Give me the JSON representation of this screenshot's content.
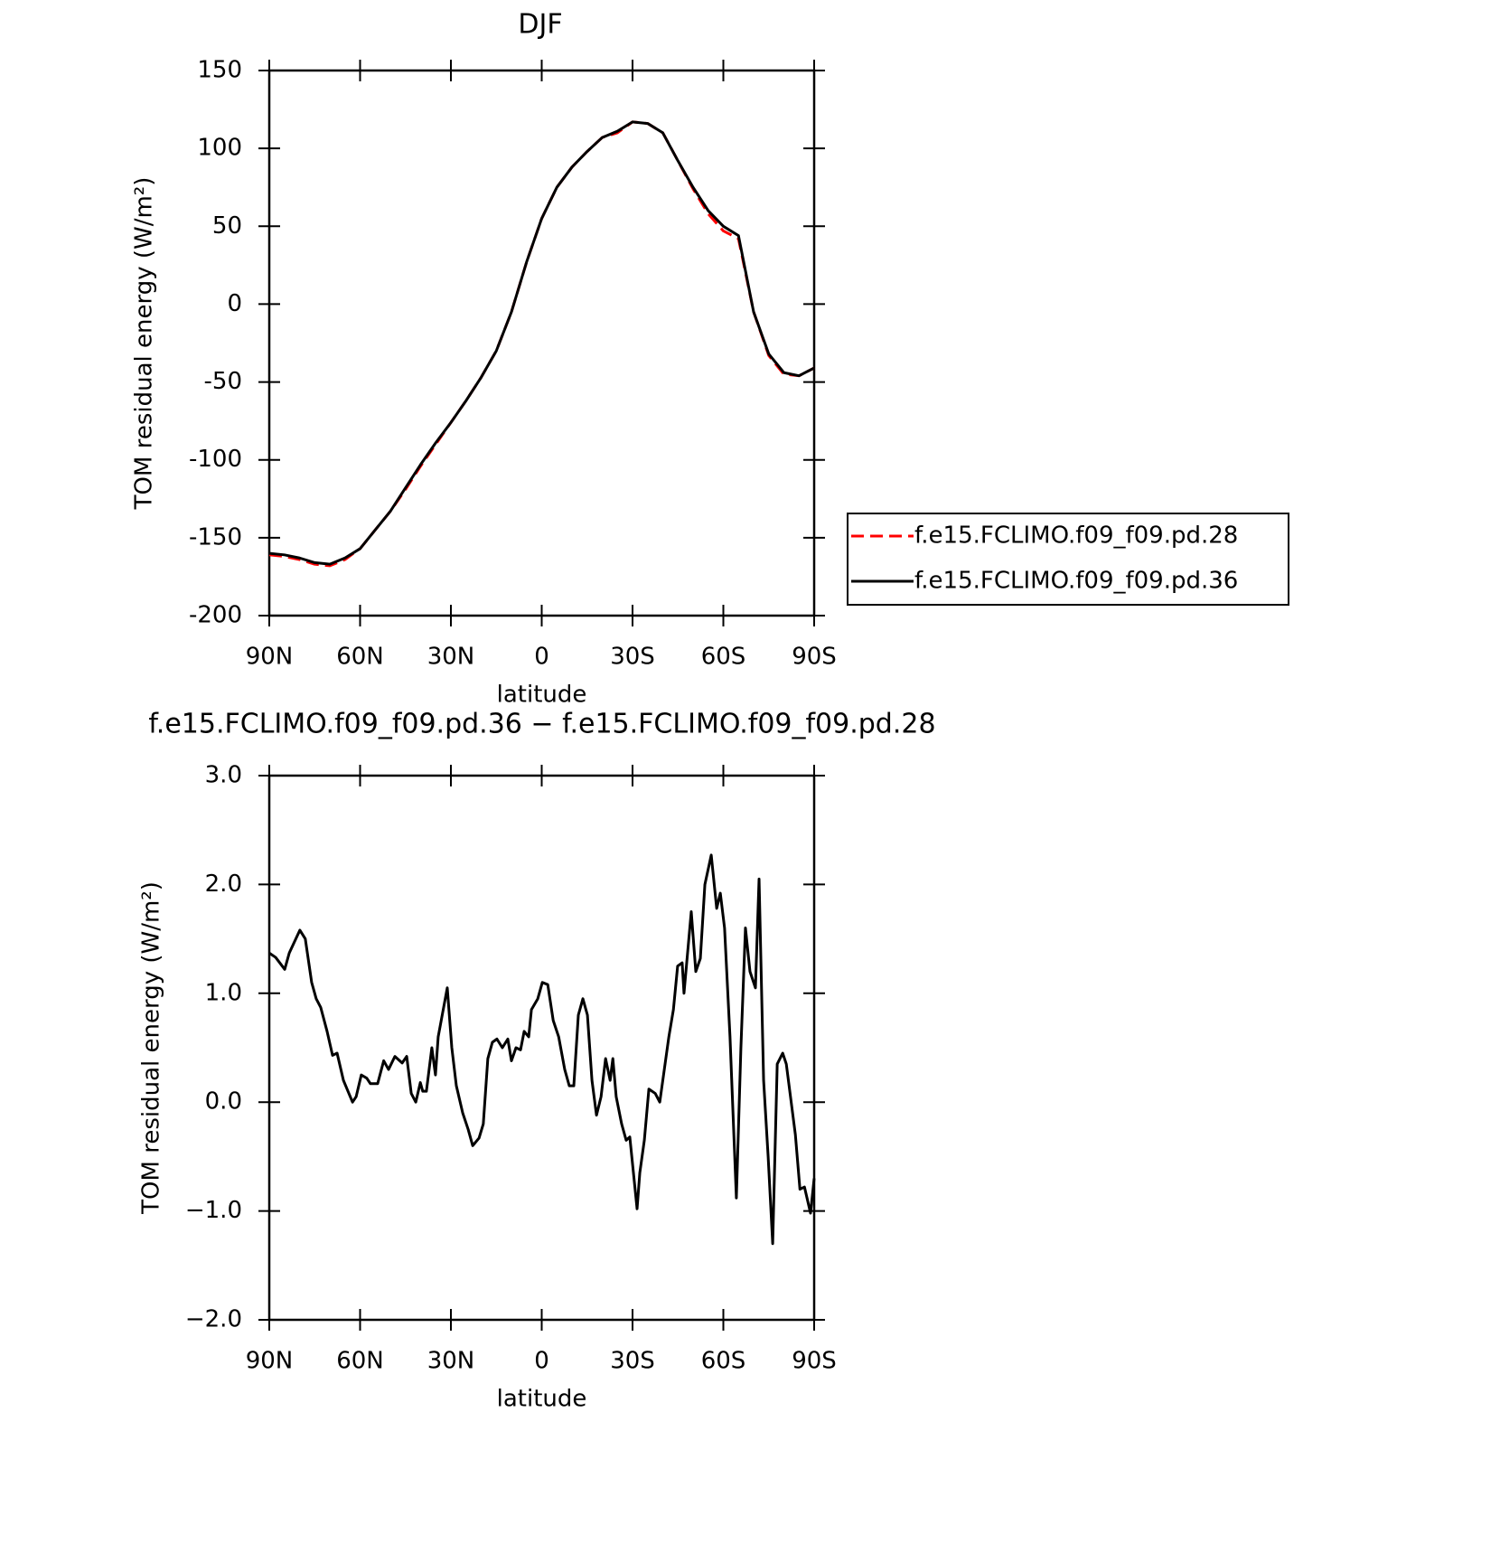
{
  "chart_data": [
    {
      "type": "line",
      "title": "DJF",
      "ylabel": "TOM residual energy (W/m²)",
      "xlabel": "latitude",
      "xlim": [
        90,
        -90
      ],
      "xticks": [
        {
          "value": 90,
          "label": "90N"
        },
        {
          "value": 60,
          "label": "60N"
        },
        {
          "value": 30,
          "label": "30N"
        },
        0,
        {
          "value": -30,
          "label": "30S"
        },
        {
          "value": -60,
          "label": "60S"
        },
        {
          "value": -90,
          "label": "90S"
        }
      ],
      "ylim": [
        -200,
        150
      ],
      "yticks": [
        -200,
        -150,
        -100,
        -50,
        0,
        50,
        100,
        150
      ],
      "legend": "right",
      "x": [
        90,
        85,
        80,
        75,
        70,
        65,
        60,
        55,
        50,
        45,
        40,
        35,
        30,
        25,
        20,
        15,
        10,
        5,
        0,
        -5,
        -10,
        -15,
        -20,
        -25,
        -30,
        -35,
        -40,
        -45,
        -50,
        -55,
        -60,
        -65,
        -70,
        -75,
        -80,
        -85,
        -90
      ],
      "series": [
        {
          "name": "f.e15.FCLIMO.f09_f09.pd.28",
          "color": "#ff0000",
          "dash": true,
          "values": [
            -161,
            -162,
            -164,
            -167,
            -168,
            -164,
            -157,
            -145,
            -133,
            -119,
            -104,
            -90,
            -76,
            -62,
            -47,
            -30,
            -5,
            27,
            55,
            75,
            88,
            98,
            107,
            110,
            117,
            116,
            110,
            92,
            74,
            58,
            47,
            42,
            -5,
            -33,
            -45,
            -46,
            -41
          ]
        },
        {
          "name": "f.e15.FCLIMO.f09_f09.pd.36",
          "color": "#000000",
          "dash": false,
          "values": [
            -160,
            -161,
            -163,
            -166,
            -167,
            -163,
            -157,
            -145,
            -133,
            -118,
            -103,
            -89,
            -76,
            -62,
            -47,
            -30,
            -5,
            27,
            55,
            75,
            88,
            98,
            107,
            111,
            117,
            116,
            110,
            92,
            75,
            60,
            50,
            44,
            -5,
            -32,
            -44,
            -46,
            -41
          ]
        }
      ]
    },
    {
      "type": "line",
      "title": "f.e15.FCLIMO.f09_f09.pd.36 − f.e15.FCLIMO.f09_f09.pd.28",
      "ylabel": "TOM residual energy (W/m²)",
      "xlabel": "latitude",
      "xlim": [
        90,
        -90
      ],
      "xticks": [
        {
          "value": 90,
          "label": "90N"
        },
        {
          "value": 60,
          "label": "60N"
        },
        {
          "value": 30,
          "label": "30N"
        },
        0,
        {
          "value": -30,
          "label": "30S"
        },
        {
          "value": -60,
          "label": "60S"
        },
        {
          "value": -90,
          "label": "90S"
        }
      ],
      "ylim": [
        -2,
        3
      ],
      "yticks": [
        {
          "value": -2,
          "label": "−2.0"
        },
        {
          "value": -1,
          "label": "−1.0"
        },
        {
          "value": 0,
          "label": "0.0"
        },
        {
          "value": 1,
          "label": "1.0"
        },
        {
          "value": 2,
          "label": "2.0"
        },
        {
          "value": 3,
          "label": "3.0"
        }
      ],
      "x": [
        90,
        87.9,
        84.9,
        83.4,
        79.9,
        78.1,
        76.0,
        74.5,
        73.0,
        70.9,
        69.1,
        67.6,
        65.5,
        64.0,
        62.5,
        61.3,
        59.6,
        57.8,
        56.6,
        54.2,
        52.2,
        50.6,
        48.5,
        46.1,
        44.6,
        43.1,
        41.6,
        40.1,
        39.3,
        38.1,
        36.3,
        35.1,
        34.2,
        31.2,
        29.7,
        28.2,
        26.1,
        24.3,
        22.8,
        20.7,
        19.3,
        17.8,
        16.3,
        14.8,
        13.0,
        11.2,
        10.0,
        8.5,
        7.0,
        5.8,
        4.3,
        3.4,
        1.3,
        -0.2,
        -2.0,
        -3.8,
        -5.6,
        -7.6,
        -9.1,
        -10.6,
        -12.1,
        -13.6,
        -15.1,
        -16.6,
        -18.1,
        -19.6,
        -21.1,
        -22.6,
        -23.5,
        -24.6,
        -26.4,
        -27.9,
        -29.1,
        -31.5,
        -32.4,
        -33.9,
        -35.4,
        -37.5,
        -39.0,
        -40.5,
        -42.0,
        -43.5,
        -44.9,
        -46.4,
        -47.0,
        -49.4,
        -50.9,
        -52.4,
        -53.9,
        -56.0,
        -57.8,
        -59.0,
        -60.4,
        -62.2,
        -64.3,
        -65.8,
        -67.3,
        -68.8,
        -70.6,
        -71.8,
        -73.3,
        -74.8,
        -76.3,
        -77.8,
        -79.6,
        -80.8,
        -83.8,
        -85.3,
        -86.8,
        -88.8,
        -90
      ],
      "series": [
        {
          "color": "#000000",
          "values": [
            1.37,
            1.33,
            1.22,
            1.37,
            1.58,
            1.5,
            1.1,
            0.95,
            0.87,
            0.65,
            0.43,
            0.45,
            0.2,
            0.1,
            0.0,
            0.05,
            0.25,
            0.22,
            0.17,
            0.17,
            0.38,
            0.3,
            0.42,
            0.36,
            0.42,
            0.08,
            0.0,
            0.18,
            0.1,
            0.1,
            0.5,
            0.25,
            0.6,
            1.05,
            0.5,
            0.15,
            -0.1,
            -0.25,
            -0.4,
            -0.33,
            -0.2,
            0.4,
            0.55,
            0.58,
            0.5,
            0.58,
            0.38,
            0.5,
            0.48,
            0.65,
            0.6,
            0.85,
            0.95,
            1.1,
            1.08,
            0.75,
            0.6,
            0.3,
            0.15,
            0.15,
            0.8,
            0.95,
            0.8,
            0.2,
            -0.12,
            0.05,
            0.4,
            0.2,
            0.4,
            0.05,
            -0.2,
            -0.35,
            -0.32,
            -0.98,
            -0.65,
            -0.35,
            0.12,
            0.08,
            0.0,
            0.3,
            0.6,
            0.85,
            1.25,
            1.28,
            1.0,
            1.75,
            1.2,
            1.32,
            2.0,
            2.27,
            1.78,
            1.92,
            1.6,
            0.6,
            -0.88,
            0.5,
            1.6,
            1.2,
            1.05,
            2.05,
            0.2,
            -0.5,
            -1.3,
            0.35,
            0.45,
            0.35,
            -0.3,
            -0.8,
            -0.78,
            -1.02,
            -0.7
          ]
        }
      ]
    }
  ]
}
